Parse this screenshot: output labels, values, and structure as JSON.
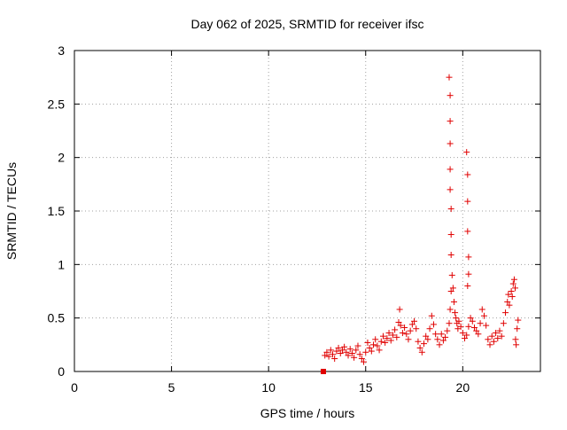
{
  "chart_data": {
    "type": "scatter",
    "title": "Day 062 of 2025, SRMTID for receiver ifsc",
    "xlabel": "GPS time / hours",
    "ylabel": "SRMTID / TECUs",
    "xlim": [
      0,
      24
    ],
    "ylim": [
      0,
      3
    ],
    "xticks": [
      0,
      5,
      10,
      15,
      20
    ],
    "yticks": [
      0,
      0.5,
      1,
      1.5,
      2,
      2.5,
      3
    ],
    "xtick_labels": [
      "0",
      "5",
      "10",
      "15",
      "20"
    ],
    "ytick_labels": [
      "0",
      "0.5",
      "1",
      "1.5",
      "2",
      "2.5",
      "3"
    ],
    "grid": true,
    "marker": "plus",
    "color": "#e00000",
    "series": [
      {
        "name": "SRMTID",
        "points": [
          [
            12.82,
            0.0
          ],
          [
            12.9,
            0.15
          ],
          [
            13.0,
            0.18
          ],
          [
            13.1,
            0.14
          ],
          [
            13.2,
            0.2
          ],
          [
            13.3,
            0.16
          ],
          [
            13.4,
            0.12
          ],
          [
            13.5,
            0.19
          ],
          [
            13.6,
            0.22
          ],
          [
            13.7,
            0.17
          ],
          [
            13.8,
            0.2
          ],
          [
            13.9,
            0.23
          ],
          [
            14.0,
            0.18
          ],
          [
            14.1,
            0.15
          ],
          [
            14.2,
            0.21
          ],
          [
            14.3,
            0.17
          ],
          [
            14.4,
            0.13
          ],
          [
            14.5,
            0.2
          ],
          [
            14.6,
            0.24
          ],
          [
            14.7,
            0.16
          ],
          [
            14.8,
            0.12
          ],
          [
            14.9,
            0.09
          ],
          [
            15.0,
            0.18
          ],
          [
            15.1,
            0.27
          ],
          [
            15.2,
            0.22
          ],
          [
            15.3,
            0.19
          ],
          [
            15.4,
            0.25
          ],
          [
            15.5,
            0.3
          ],
          [
            15.6,
            0.24
          ],
          [
            15.7,
            0.2
          ],
          [
            15.8,
            0.28
          ],
          [
            15.9,
            0.33
          ],
          [
            16.0,
            0.27
          ],
          [
            16.1,
            0.31
          ],
          [
            16.2,
            0.36
          ],
          [
            16.3,
            0.29
          ],
          [
            16.4,
            0.34
          ],
          [
            16.5,
            0.39
          ],
          [
            16.6,
            0.32
          ],
          [
            16.7,
            0.46
          ],
          [
            16.75,
            0.58
          ],
          [
            16.8,
            0.43
          ],
          [
            16.9,
            0.36
          ],
          [
            17.0,
            0.41
          ],
          [
            17.1,
            0.35
          ],
          [
            17.2,
            0.3
          ],
          [
            17.3,
            0.38
          ],
          [
            17.4,
            0.44
          ],
          [
            17.5,
            0.47
          ],
          [
            17.6,
            0.4
          ],
          [
            17.7,
            0.28
          ],
          [
            17.8,
            0.22
          ],
          [
            17.9,
            0.18
          ],
          [
            18.0,
            0.26
          ],
          [
            18.1,
            0.33
          ],
          [
            18.2,
            0.3
          ],
          [
            18.3,
            0.4
          ],
          [
            18.4,
            0.52
          ],
          [
            18.5,
            0.44
          ],
          [
            18.6,
            0.35
          ],
          [
            18.7,
            0.3
          ],
          [
            18.8,
            0.25
          ],
          [
            18.9,
            0.35
          ],
          [
            19.0,
            0.29
          ],
          [
            19.1,
            0.32
          ],
          [
            19.2,
            0.38
          ],
          [
            19.3,
            0.45
          ],
          [
            19.35,
            0.58
          ],
          [
            19.4,
            0.75
          ],
          [
            19.45,
            0.9
          ],
          [
            19.5,
            0.78
          ],
          [
            19.55,
            0.65
          ],
          [
            19.6,
            0.55
          ],
          [
            19.65,
            0.5
          ],
          [
            19.7,
            0.45
          ],
          [
            19.75,
            0.4
          ],
          [
            19.8,
            0.47
          ],
          [
            19.9,
            0.42
          ],
          [
            20.0,
            0.36
          ],
          [
            20.1,
            0.31
          ],
          [
            20.2,
            0.34
          ],
          [
            20.3,
            0.42
          ],
          [
            20.4,
            0.5
          ],
          [
            20.5,
            0.47
          ],
          [
            20.6,
            0.41
          ],
          [
            20.7,
            0.38
          ],
          [
            20.8,
            0.35
          ],
          [
            20.9,
            0.45
          ],
          [
            21.0,
            0.58
          ],
          [
            21.1,
            0.52
          ],
          [
            21.2,
            0.43
          ],
          [
            21.3,
            0.3
          ],
          [
            21.4,
            0.25
          ],
          [
            21.5,
            0.33
          ],
          [
            21.6,
            0.28
          ],
          [
            21.7,
            0.36
          ],
          [
            21.8,
            0.31
          ],
          [
            21.9,
            0.38
          ],
          [
            22.0,
            0.33
          ],
          [
            22.1,
            0.45
          ],
          [
            22.2,
            0.55
          ],
          [
            22.3,
            0.65
          ],
          [
            22.35,
            0.72
          ],
          [
            22.4,
            0.62
          ],
          [
            22.5,
            0.75
          ],
          [
            22.55,
            0.7
          ],
          [
            22.6,
            0.82
          ],
          [
            22.65,
            0.86
          ],
          [
            22.7,
            0.78
          ],
          [
            22.72,
            0.3
          ],
          [
            22.75,
            0.25
          ],
          [
            22.8,
            0.4
          ],
          [
            22.85,
            0.48
          ],
          [
            19.3,
            2.75
          ],
          [
            19.35,
            2.58
          ],
          [
            19.35,
            2.34
          ],
          [
            19.35,
            2.13
          ],
          [
            19.35,
            1.89
          ],
          [
            19.35,
            1.7
          ],
          [
            19.4,
            1.52
          ],
          [
            19.4,
            1.28
          ],
          [
            19.4,
            1.09
          ],
          [
            20.2,
            2.05
          ],
          [
            20.25,
            1.84
          ],
          [
            20.25,
            1.59
          ],
          [
            20.25,
            1.31
          ],
          [
            20.3,
            1.07
          ],
          [
            20.3,
            0.91
          ],
          [
            20.25,
            0.8
          ]
        ]
      }
    ]
  }
}
